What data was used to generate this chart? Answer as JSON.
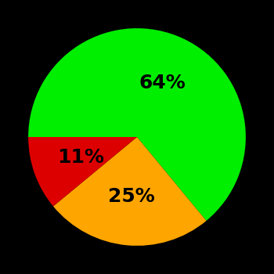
{
  "slices": [
    64,
    25,
    11
  ],
  "colors": [
    "#00ee00",
    "#ffa500",
    "#dd0000"
  ],
  "labels": [
    "64%",
    "25%",
    "11%"
  ],
  "background_color": "#000000",
  "startangle": 180,
  "counterclock": false,
  "figsize": [
    3.5,
    3.5
  ],
  "dpi": 100,
  "label_fontsize": 18,
  "label_fontweight": "bold",
  "label_r": 0.55
}
